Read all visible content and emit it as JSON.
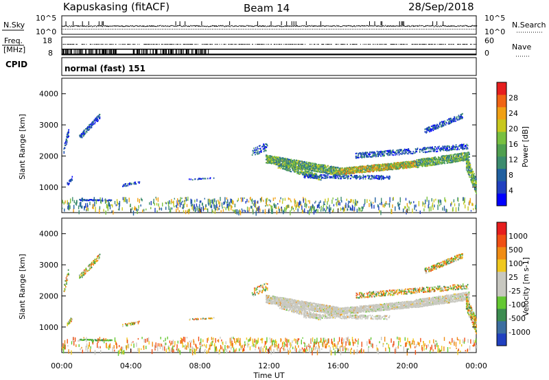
{
  "header": {
    "station": "Kapuskasing (fitACF)",
    "beam": "Beam 14",
    "date": "28/Sep/2018"
  },
  "strips": {
    "nsky_label": "N.Sky",
    "nsky_ticks": [
      "10^5",
      "10^0"
    ],
    "nsearch_label": "N.Search",
    "nsearch_ticks": [
      "10^5",
      "10^0"
    ],
    "freq_label_line1": "Freq.",
    "freq_label_line2": "[MHz]",
    "freq_ticks": [
      "18",
      "8"
    ],
    "nave_label": "Nave",
    "nave_ticks": [
      "60",
      "0"
    ],
    "cpid_label": "CPID",
    "cpid_value": "normal (fast) 151"
  },
  "chart_data": [
    {
      "type": "heatmap",
      "name": "power-panel",
      "ylabel": "Slant Range [km]",
      "ylim": [
        180,
        4500
      ],
      "yticks": [
        1000,
        2000,
        3000,
        4000
      ],
      "xlim": [
        0,
        24
      ],
      "colorbar": {
        "label": "Power [dB]",
        "ticks": [
          "28",
          "24",
          "20",
          "16",
          "12",
          "8",
          "4"
        ],
        "colors": [
          "#0000ff",
          "#2040c0",
          "#2060a0",
          "#3c8c6e",
          "#50a050",
          "#78c040",
          "#c8c81e",
          "#f0a014",
          "#f06414",
          "#e61e1e"
        ]
      }
    },
    {
      "type": "heatmap",
      "name": "velocity-panel",
      "ylabel": "Velocity [m s^-1]",
      "ylabel_left": "Slant Range [km]",
      "ylim": [
        180,
        4500
      ],
      "yticks": [
        1000,
        2000,
        3000,
        4000
      ],
      "xlim": [
        0,
        24
      ],
      "xticks": [
        "00:00",
        "04:00",
        "08:00",
        "12:00",
        "16:00",
        "20:00",
        "00:00"
      ],
      "xlabel": "Time UT",
      "colorbar": {
        "label": "Velocity [m s-1]",
        "ticks": [
          "1000",
          "500",
          "100",
          "25",
          "-25",
          "-100",
          "-500",
          "-1000"
        ],
        "colors": [
          "#2040c0",
          "#3c6ea0",
          "#3c8c50",
          "#64c832",
          "#c8c8c0",
          "#c8c8c0",
          "#f0c81e",
          "#f08c14",
          "#f05014",
          "#e61e1e"
        ]
      }
    }
  ]
}
